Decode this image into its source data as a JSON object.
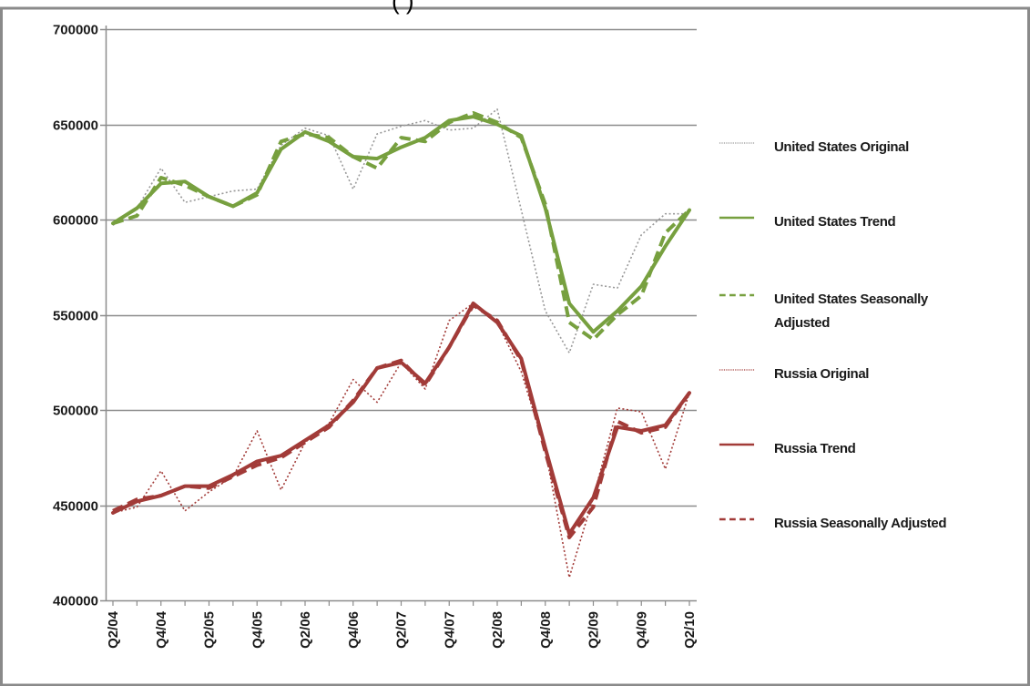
{
  "title_fragment": "(                    )",
  "colors": {
    "us": "#77a03f",
    "russia": "#a23b38",
    "grid": "#8c8c8c",
    "original_dotted": "#999999"
  },
  "chart_data": {
    "type": "line",
    "title": "",
    "xlabel": "",
    "ylabel": "",
    "ylim": [
      400000,
      700000
    ],
    "yticks": [
      400000,
      450000,
      500000,
      550000,
      600000,
      650000,
      700000
    ],
    "ytick_labels": [
      "400000",
      "450000",
      "500000",
      "550000",
      "600000",
      "650000",
      "700000"
    ],
    "grid": true,
    "legend_position": "right",
    "categories": [
      "Q2/04",
      "Q3/04",
      "Q4/04",
      "Q1/05",
      "Q2/05",
      "Q3/05",
      "Q4/05",
      "Q1/06",
      "Q2/06",
      "Q3/06",
      "Q4/06",
      "Q1/07",
      "Q2/07",
      "Q3/07",
      "Q4/07",
      "Q1/08",
      "Q2/08",
      "Q3/08",
      "Q4/08",
      "Q1/09",
      "Q2/09",
      "Q3/09",
      "Q4/09",
      "Q1/10",
      "Q2/10"
    ],
    "xtick_labels": [
      "Q2/04",
      "Q4/04",
      "Q2/05",
      "Q4/05",
      "Q2/06",
      "Q4/06",
      "Q2/07",
      "Q4/07",
      "Q2/08",
      "Q4/08",
      "Q2/09",
      "Q4/09",
      "Q2/10"
    ],
    "series": [
      {
        "name": "United States Original",
        "style": "dotted",
        "color": "#999999",
        "values": [
          597000,
          606000,
          627000,
          609000,
          612000,
          615000,
          616000,
          639000,
          648000,
          644000,
          616000,
          645000,
          649000,
          652000,
          647000,
          648000,
          658000,
          605000,
          552000,
          530000,
          566000,
          564000,
          592000,
          603000,
          603000
        ]
      },
      {
        "name": "United States Trend",
        "style": "solid",
        "color": "#77a03f",
        "values": [
          598000,
          606000,
          619000,
          620000,
          612000,
          607000,
          614000,
          637000,
          646000,
          641000,
          633000,
          632000,
          638000,
          643000,
          652000,
          654000,
          650000,
          644000,
          606000,
          556000,
          541000,
          552000,
          565000,
          586000,
          605000
        ]
      },
      {
        "name": "United States Seasonally Adjusted",
        "style": "dashed",
        "color": "#77a03f",
        "values": [
          598000,
          602000,
          622000,
          618000,
          612000,
          607000,
          613000,
          641000,
          645000,
          643000,
          633000,
          627000,
          643000,
          641000,
          651000,
          656000,
          651000,
          643000,
          608000,
          546000,
          537000,
          550000,
          560000,
          593000,
          605000
        ]
      },
      {
        "name": "Russia Original",
        "style": "dotted",
        "color": "#a23b38",
        "values": [
          446000,
          449000,
          468000,
          447000,
          457000,
          465000,
          489000,
          458000,
          483000,
          493000,
          516000,
          504000,
          525000,
          511000,
          547000,
          556000,
          546000,
          520000,
          479000,
          412000,
          454000,
          501000,
          499000,
          469000,
          509000
        ]
      },
      {
        "name": "Russia Trend",
        "style": "solid",
        "color": "#a23b38",
        "values": [
          446000,
          452000,
          455000,
          460000,
          460000,
          466000,
          473000,
          476000,
          484000,
          492000,
          504000,
          522000,
          525000,
          514000,
          533000,
          556000,
          546000,
          527000,
          480000,
          435000,
          454000,
          491000,
          489000,
          492000,
          509000
        ]
      },
      {
        "name": "Russia Seasonally Adjusted",
        "style": "dashed",
        "color": "#a23b38",
        "values": [
          447000,
          453000,
          455000,
          460000,
          459000,
          465000,
          471000,
          475000,
          483000,
          491000,
          505000,
          522000,
          526000,
          513000,
          533000,
          555000,
          547000,
          526000,
          478000,
          433000,
          449000,
          494000,
          488000,
          491000,
          509000
        ]
      }
    ]
  }
}
